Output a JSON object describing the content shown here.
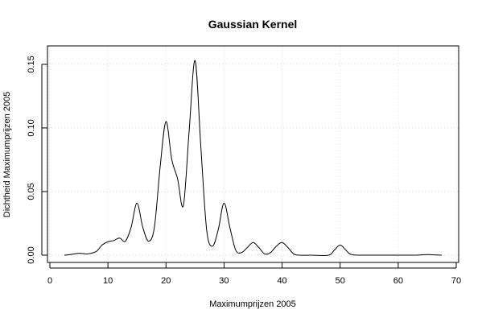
{
  "chart_data": {
    "type": "line",
    "title": "Gaussian Kernel",
    "xlabel": "Maximumprijzen 2005",
    "ylabel": "Dichtheid Maximumprijzen 2005",
    "xlim": [
      0,
      70
    ],
    "ylim": [
      0,
      0.155
    ],
    "x_ticks": [
      "0",
      "10",
      "20",
      "30",
      "40",
      "50",
      "60",
      "70"
    ],
    "y_ticks": [
      "0.00",
      "0.05",
      "0.10",
      "0.15"
    ],
    "grid": true,
    "series": [
      {
        "x": [
          2.5,
          3.5,
          5,
          6.5,
          8,
          9,
          10,
          11,
          12,
          13,
          14,
          15,
          16,
          17,
          18,
          19,
          20,
          21,
          22,
          23,
          24,
          25,
          26,
          27,
          28,
          29,
          30,
          31,
          32,
          33,
          34,
          35,
          36,
          37,
          38,
          39,
          40,
          41,
          42,
          43,
          45,
          48,
          49,
          50,
          51,
          52,
          55,
          60,
          63,
          65,
          67.5
        ],
        "y": [
          0.0,
          0.0005,
          0.0015,
          0.001,
          0.003,
          0.008,
          0.0105,
          0.0115,
          0.0135,
          0.011,
          0.022,
          0.041,
          0.022,
          0.011,
          0.022,
          0.07,
          0.105,
          0.075,
          0.06,
          0.039,
          0.098,
          0.153,
          0.085,
          0.02,
          0.007,
          0.02,
          0.041,
          0.022,
          0.004,
          0.002,
          0.006,
          0.01,
          0.006,
          0.001,
          0.002,
          0.007,
          0.01,
          0.006,
          0.001,
          0.0,
          0.0,
          0.0,
          0.004,
          0.008,
          0.004,
          0.0005,
          0.0,
          0.0,
          0.0,
          0.0005,
          0.0
        ]
      }
    ]
  }
}
